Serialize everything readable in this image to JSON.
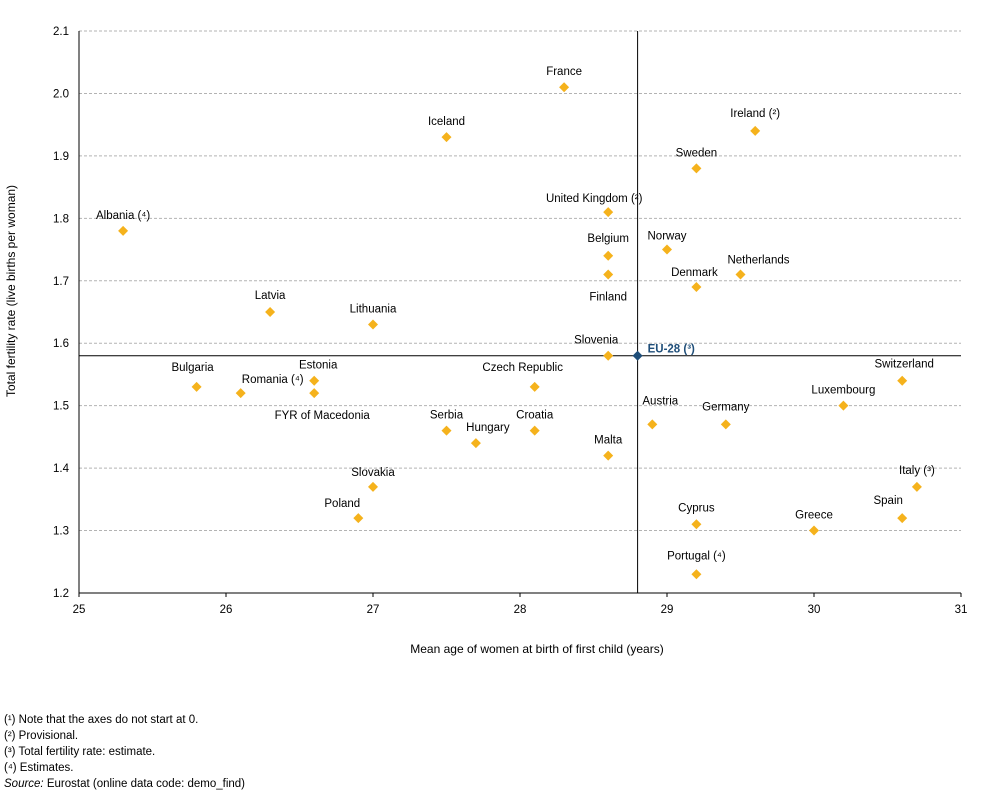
{
  "chart_data": {
    "type": "scatter",
    "title": "",
    "xlabel": "Mean age of women at birth of first child (years)",
    "ylabel": "Total fertility rate (live births per woman)",
    "xlim": [
      25,
      31
    ],
    "ylim": [
      1.2,
      2.1
    ],
    "x_ticks": [
      "25",
      "26",
      "27",
      "28",
      "29",
      "30",
      "31"
    ],
    "y_ticks": [
      "1.2",
      "1.3",
      "1.4",
      "1.5",
      "1.6",
      "1.7",
      "1.8",
      "1.9",
      "2.0",
      "2.1"
    ],
    "grid": "horizontal dashed",
    "marker_color": "#F5B21C",
    "reference_color": "#1F4E79",
    "reference": {
      "label": "EU-28 (³)",
      "x": 28.8,
      "y": 1.58
    },
    "points": [
      {
        "label": "France",
        "x": 28.3,
        "y": 2.01
      },
      {
        "label": "Iceland",
        "x": 27.5,
        "y": 1.93
      },
      {
        "label": "Ireland (²)",
        "x": 29.6,
        "y": 1.94
      },
      {
        "label": "Sweden",
        "x": 29.2,
        "y": 1.88
      },
      {
        "label": "United Kingdom (²)",
        "x": 28.6,
        "y": 1.81
      },
      {
        "label": "Albania (⁴)",
        "x": 25.3,
        "y": 1.78
      },
      {
        "label": "Belgium",
        "x": 28.6,
        "y": 1.74
      },
      {
        "label": "Norway",
        "x": 29.0,
        "y": 1.75
      },
      {
        "label": "Netherlands",
        "x": 29.5,
        "y": 1.71
      },
      {
        "label": "Denmark",
        "x": 29.2,
        "y": 1.69
      },
      {
        "label": "Finland",
        "x": 28.6,
        "y": 1.71
      },
      {
        "label": "Latvia",
        "x": 26.3,
        "y": 1.65
      },
      {
        "label": "Lithuania",
        "x": 27.0,
        "y": 1.63
      },
      {
        "label": "Slovenia",
        "x": 28.6,
        "y": 1.58
      },
      {
        "label": "Bulgaria",
        "x": 25.8,
        "y": 1.53
      },
      {
        "label": "Romania (⁴)",
        "x": 26.1,
        "y": 1.52
      },
      {
        "label": "Estonia",
        "x": 26.6,
        "y": 1.54
      },
      {
        "label": "FYR of Macedonia",
        "x": 26.6,
        "y": 1.52
      },
      {
        "label": "Czech Republic",
        "x": 28.1,
        "y": 1.53
      },
      {
        "label": "Switzerland",
        "x": 30.6,
        "y": 1.54
      },
      {
        "label": "Luxembourg",
        "x": 30.2,
        "y": 1.5
      },
      {
        "label": "Serbia",
        "x": 27.5,
        "y": 1.46
      },
      {
        "label": "Hungary",
        "x": 27.7,
        "y": 1.44
      },
      {
        "label": "Croatia",
        "x": 28.1,
        "y": 1.46
      },
      {
        "label": "Austria",
        "x": 28.9,
        "y": 1.47
      },
      {
        "label": "Germany",
        "x": 29.4,
        "y": 1.47
      },
      {
        "label": "Malta",
        "x": 28.6,
        "y": 1.42
      },
      {
        "label": "Slovakia",
        "x": 27.0,
        "y": 1.37
      },
      {
        "label": "Italy (³)",
        "x": 30.7,
        "y": 1.37
      },
      {
        "label": "Poland",
        "x": 26.9,
        "y": 1.32
      },
      {
        "label": "Cyprus",
        "x": 29.2,
        "y": 1.31
      },
      {
        "label": "Greece",
        "x": 30.0,
        "y": 1.3
      },
      {
        "label": "Spain",
        "x": 30.6,
        "y": 1.32
      },
      {
        "label": "Portugal (⁴)",
        "x": 29.2,
        "y": 1.23
      }
    ]
  },
  "notes": {
    "n1": "(¹) Note that the axes do not start at 0.",
    "n2": "(²) Provisional.",
    "n3": "(³) Total fertility rate: estimate.",
    "n4": "(⁴) Estimates.",
    "source_label": "Source:",
    "source_text": " Eurostat (online data code: demo_find)"
  }
}
